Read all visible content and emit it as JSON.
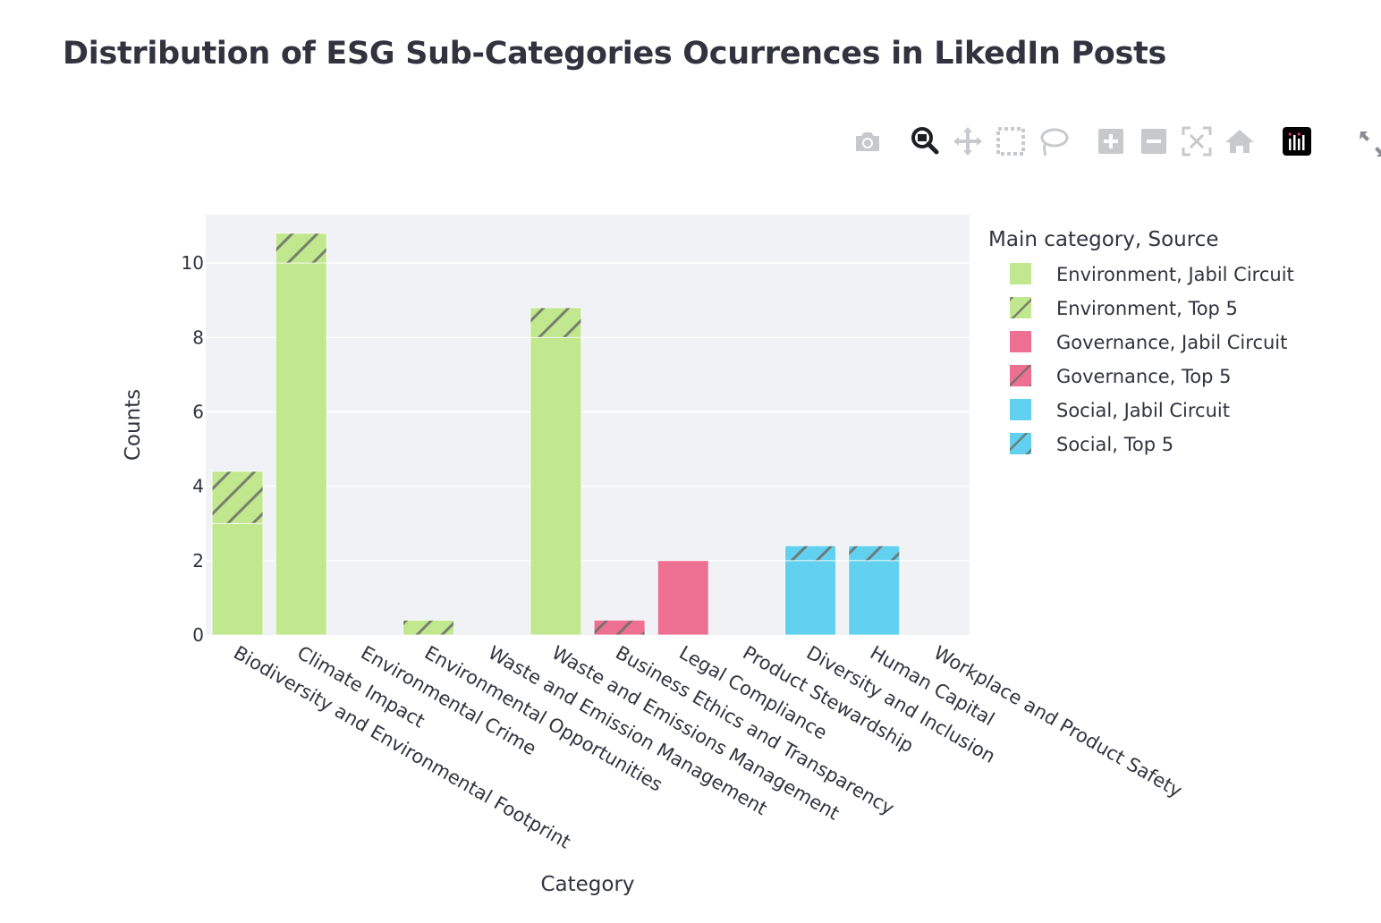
{
  "title": "Distribution of ESG Sub-Categories Ocurrences in LikedIn Posts",
  "modebar": {
    "icons": [
      "camera-icon",
      "zoom-icon",
      "pan-icon",
      "box-select-icon",
      "lasso-select-icon",
      "zoom-in-icon",
      "zoom-out-icon",
      "autoscale-icon",
      "reset-axes-icon",
      "plotly-logo-icon",
      "fullscreen-icon"
    ]
  },
  "chart_data": {
    "type": "bar",
    "barmode": "stack",
    "xlabel": "Category",
    "ylabel": "Counts",
    "ylim": [
      0,
      11.3
    ],
    "yticks": [
      0,
      2,
      4,
      6,
      8,
      10
    ],
    "grid": true,
    "legend_title": "Main category, Source",
    "legend_position": "right",
    "categories": [
      "Biodiversity and Environmental Footprint",
      "Climate Impact",
      "Environmental Crime",
      "Environmental Opportunities",
      "Waste and Emission Management",
      "Waste and Emissions Management",
      "Business Ethics and Transparency",
      "Legal Compliance",
      "Product Stewardship",
      "Diversity and Inclusion",
      "Human Capital",
      "Workplace and Product Safety"
    ],
    "series": [
      {
        "name": "Environment, Jabil Circuit",
        "color": "#c1e78f",
        "pattern": false,
        "values": [
          3,
          10,
          0,
          0,
          0,
          8,
          0,
          0,
          0,
          0,
          0,
          0
        ]
      },
      {
        "name": "Environment, Top 5",
        "color": "#c1e78f",
        "pattern": true,
        "values": [
          1.4,
          0.8,
          0,
          0.4,
          0,
          0.8,
          0,
          0,
          0,
          0,
          0,
          0
        ]
      },
      {
        "name": "Governance, Jabil Circuit",
        "color": "#ed7093",
        "pattern": false,
        "values": [
          0,
          0,
          0,
          0,
          0,
          0,
          0,
          2,
          0,
          0,
          0,
          0
        ]
      },
      {
        "name": "Governance, Top 5",
        "color": "#ed7093",
        "pattern": true,
        "values": [
          0,
          0,
          0,
          0,
          0,
          0,
          0.4,
          0,
          0,
          0,
          0,
          0
        ]
      },
      {
        "name": "Social, Jabil Circuit",
        "color": "#62d1ef",
        "pattern": false,
        "values": [
          0,
          0,
          0,
          0,
          0,
          0,
          0,
          0,
          0,
          2,
          2,
          0
        ]
      },
      {
        "name": "Social, Top 5",
        "color": "#62d1ef",
        "pattern": true,
        "values": [
          0,
          0,
          0,
          0,
          0,
          0,
          0,
          0,
          0,
          0.4,
          0.4,
          0
        ]
      }
    ]
  }
}
